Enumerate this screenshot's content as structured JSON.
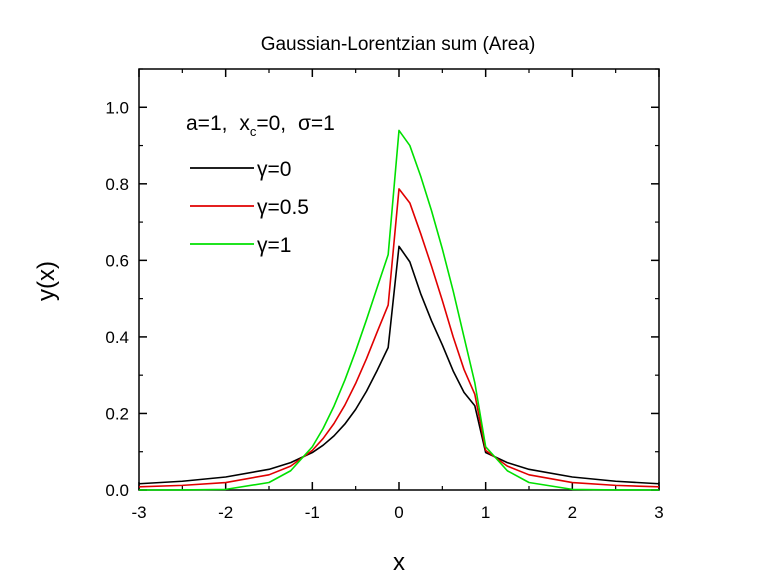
{
  "chart_data": {
    "type": "line",
    "title": "Gaussian-Lorentzian sum (Area)",
    "xlabel": "x",
    "ylabel": "y(x)",
    "xlim": [
      -3,
      3
    ],
    "ylim": [
      0,
      1.1
    ],
    "xticks": [
      -3,
      -2,
      -1,
      0,
      1,
      2,
      3
    ],
    "yticks": [
      0.0,
      0.2,
      0.4,
      0.6,
      0.8,
      1.0
    ],
    "xtick_labels": [
      "-3",
      "-2",
      "-1",
      "0",
      "1",
      "2",
      "3"
    ],
    "ytick_labels": [
      "0.0",
      "0.2",
      "0.4",
      "0.6",
      "0.8",
      "1.0"
    ],
    "grid": false,
    "legend": {
      "placement": "top-left",
      "header": {
        "a": "a=1,",
        "xc_base": "x",
        "xc_sub": "c",
        "xc_rest": "=0,",
        "sigma_sym": "σ",
        "sigma_rest": "=1"
      },
      "entries": [
        {
          "symbol": "γ",
          "text": "=0",
          "color": "#000000"
        },
        {
          "symbol": "γ",
          "text": "=0.5",
          "color": "#e00000"
        },
        {
          "symbol": "γ",
          "text": "=1",
          "color": "#00e000"
        }
      ]
    },
    "x": [
      -3,
      -2.5,
      -2,
      -1.5,
      -1.25,
      -1,
      -0.875,
      -0.75,
      -0.625,
      -0.5,
      -0.375,
      -0.25,
      -0.125,
      0,
      0.125,
      0.25,
      0.375,
      0.5,
      0.625,
      0.75,
      0.875,
      1,
      1.25,
      1.5,
      2,
      2.5,
      3
    ],
    "series": [
      {
        "name": "γ=0",
        "color": "#000000",
        "values": [
          0.0163,
          0.0229,
          0.034,
          0.054,
          0.0715,
          0.0979,
          0.1171,
          0.1414,
          0.1722,
          0.2107,
          0.258,
          0.3133,
          0.3724,
          0.6366,
          0.596,
          0.513,
          0.442,
          0.379,
          0.311,
          0.255,
          0.22,
          0.0979,
          0.0715,
          0.054,
          0.034,
          0.0229,
          0.0163
        ]
      },
      {
        "name": "γ=0.5",
        "color": "#e00000",
        "values": [
          0.0083,
          0.0121,
          0.0195,
          0.0397,
          0.0624,
          0.1035,
          0.1347,
          0.1737,
          0.2216,
          0.2785,
          0.3432,
          0.414,
          0.4832,
          0.7868,
          0.75,
          0.67,
          0.585,
          0.495,
          0.4,
          0.315,
          0.25,
          0.1035,
          0.0624,
          0.0397,
          0.0195,
          0.0121,
          0.0083
        ]
      },
      {
        "name": "γ=1",
        "color": "#00e000",
        "values": [
          0.0,
          0.0001,
          0.0016,
          0.0196,
          0.0503,
          0.113,
          0.161,
          0.2192,
          0.287,
          0.363,
          0.445,
          0.5305,
          0.615,
          0.9394,
          0.9,
          0.82,
          0.73,
          0.63,
          0.52,
          0.4,
          0.28,
          0.113,
          0.0503,
          0.0196,
          0.0016,
          0.0001,
          0.0
        ]
      }
    ]
  }
}
